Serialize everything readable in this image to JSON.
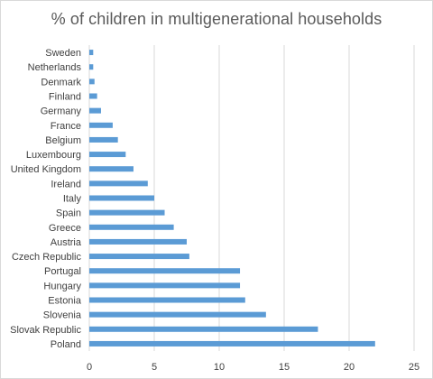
{
  "chart_data": {
    "type": "bar",
    "orientation": "horizontal",
    "title": "% of children in multigenerational households",
    "xlabel": "",
    "ylabel": "",
    "categories": [
      "Sweden",
      "Netherlands",
      "Denmark",
      "Finland",
      "Germany",
      "France",
      "Belgium",
      "Luxembourg",
      "United Kingdom",
      "Ireland",
      "Italy",
      "Spain",
      "Greece",
      "Austria",
      "Czech Republic",
      "Portugal",
      "Hungary",
      "Estonia",
      "Slovenia",
      "Slovak Republic",
      "Poland"
    ],
    "values": [
      0.3,
      0.3,
      0.4,
      0.6,
      0.9,
      1.8,
      2.2,
      2.8,
      3.4,
      4.5,
      5.0,
      5.8,
      6.5,
      7.5,
      7.7,
      11.6,
      11.6,
      12.0,
      13.6,
      17.6,
      22.0
    ],
    "xlim": [
      0,
      25
    ],
    "xticks": [
      "0",
      "5",
      "10",
      "15",
      "20",
      "25"
    ],
    "xtick_values": [
      0,
      5,
      10,
      15,
      20,
      25
    ],
    "grid": "vertical",
    "bar_color": "#5b9bd5",
    "gridline_color": "#d9d9d9"
  }
}
